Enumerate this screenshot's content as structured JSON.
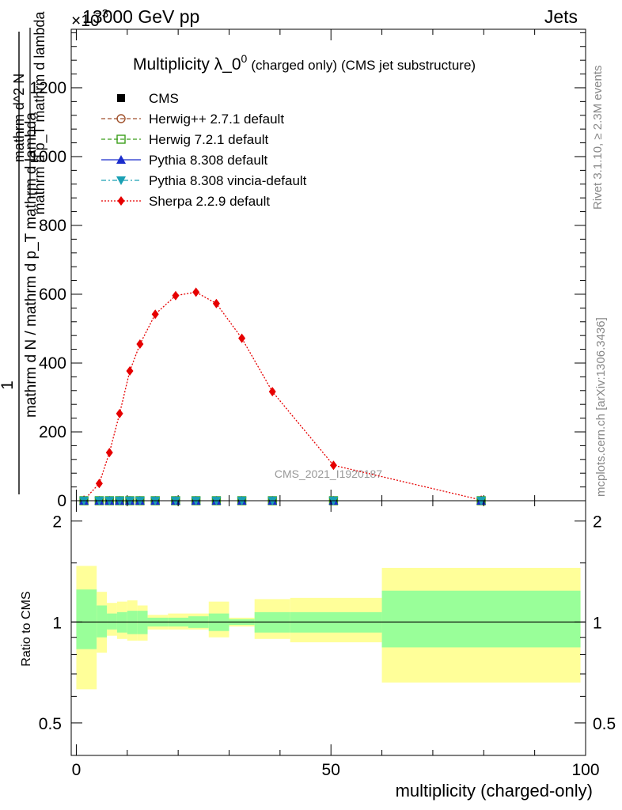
{
  "header": {
    "energy_label": "13000 GeV pp",
    "exponent_label": "×10",
    "exponent_power": "−3",
    "category_label": "Jets"
  },
  "side_labels": {
    "rivet": "Rivet 3.1.10, ≥ 2.3M events",
    "mcplots": "mcplots.cern.ch [arXiv:1306.3436]"
  },
  "chart_data": [
    {
      "type": "line",
      "panel": "main",
      "title": "Multiplicity λ_0",
      "title_superscript": "0",
      "title_suffix_1": "(charged only)",
      "title_suffix_2": "(CMS jet substructure)",
      "ylabel_numerator": "1",
      "ylabel_denominator": "mathrm d N / mathrm d p_T mathrm d lambda",
      "ylabel_numerator_2": "mathrm d^2 N",
      "ylabel_2": "mathrm d p_T mathrm d lambda",
      "ylabel_lines": [
        "mathrm d N / mathrm d p",
        "mathrm d p",
        "mathrm d^2 N",
        "mathrm d lambda"
      ],
      "xlim": [
        -1,
        100
      ],
      "ylim": [
        0,
        1370
      ],
      "y_ticks": [
        0,
        200,
        400,
        600,
        800,
        1000,
        1200
      ],
      "y_tick_labels": [
        "0",
        "200",
        "400",
        "600",
        "800",
        "1000",
        "1200"
      ],
      "watermark": "CMS_2021_I1920187",
      "legend_position": "top-left",
      "legend": [
        {
          "name": "CMS",
          "color": "#000000",
          "marker": "square-filled",
          "line": "none"
        },
        {
          "name": "Herwig++ 2.7.1 default",
          "color": "#a0522d",
          "marker": "circle-open",
          "line": "dashed"
        },
        {
          "name": "Herwig 7.2.1 default",
          "color": "#3a9e1a",
          "marker": "square-open",
          "line": "dashed"
        },
        {
          "name": "Pythia 8.308 default",
          "color": "#1a2ccc",
          "marker": "triangle-up-filled",
          "line": "solid"
        },
        {
          "name": "Pythia 8.308 vincia-default",
          "color": "#1aa0b4",
          "marker": "triangle-down-filled",
          "line": "dashdot"
        },
        {
          "name": "Sherpa 2.2.9 default",
          "color": "#e60000",
          "marker": "diamond-filled",
          "line": "dotted"
        }
      ],
      "series": [
        {
          "name": "Sherpa 2.2.9 default",
          "x": [
            1.5,
            4.5,
            6.5,
            8.5,
            10.5,
            12.5,
            15.5,
            19.5,
            23.5,
            27.5,
            32.5,
            38.5,
            50.5,
            79.5
          ],
          "values": [
            2,
            50,
            140,
            253,
            377,
            455,
            542,
            596,
            606,
            573,
            472,
            317,
            103,
            2
          ]
        },
        {
          "name": "CMS",
          "x": [
            1.5,
            4.5,
            6.5,
            8.5,
            10.5,
            12.5,
            15.5,
            19.5,
            23.5,
            27.5,
            32.5,
            38.5,
            50.5,
            79.5
          ],
          "values": [
            0,
            0,
            0,
            0,
            0,
            0,
            0,
            0,
            0,
            0,
            0,
            0,
            0,
            0
          ]
        }
      ]
    },
    {
      "type": "area",
      "panel": "ratio",
      "ylabel": "Ratio to CMS",
      "xlabel": "multiplicity (charged-only)",
      "xlim": [
        -1,
        100
      ],
      "ylim": [
        0.4,
        2.3
      ],
      "y_scale": "log",
      "y_ticks": [
        0.5,
        1,
        2
      ],
      "y_tick_labels": [
        "0.5",
        "1",
        "2"
      ],
      "x_ticks": [
        0,
        50,
        100
      ],
      "x_tick_labels": [
        "0",
        "50",
        "100"
      ],
      "reference_line": 1,
      "bands": {
        "edges": [
          0,
          4,
          6,
          8,
          10,
          12,
          14,
          18,
          22,
          26,
          30,
          35,
          42,
          60,
          99
        ],
        "stat_low": [
          0.83,
          0.9,
          0.95,
          0.93,
          0.92,
          0.92,
          0.97,
          0.97,
          0.96,
          0.94,
          0.98,
          0.93,
          0.93,
          0.84
        ],
        "stat_high": [
          1.25,
          1.12,
          1.06,
          1.07,
          1.08,
          1.08,
          1.03,
          1.03,
          1.04,
          1.06,
          1.02,
          1.07,
          1.07,
          1.24
        ],
        "syst_low": [
          0.63,
          0.81,
          0.91,
          0.89,
          0.88,
          0.88,
          0.95,
          0.95,
          0.95,
          0.9,
          0.97,
          0.89,
          0.87,
          0.66
        ],
        "syst_high": [
          1.47,
          1.23,
          1.14,
          1.15,
          1.16,
          1.12,
          1.05,
          1.06,
          1.06,
          1.15,
          1.03,
          1.17,
          1.18,
          1.45
        ]
      },
      "band_colors": {
        "stat": "#99ff99",
        "syst": "#ffff99"
      }
    }
  ]
}
